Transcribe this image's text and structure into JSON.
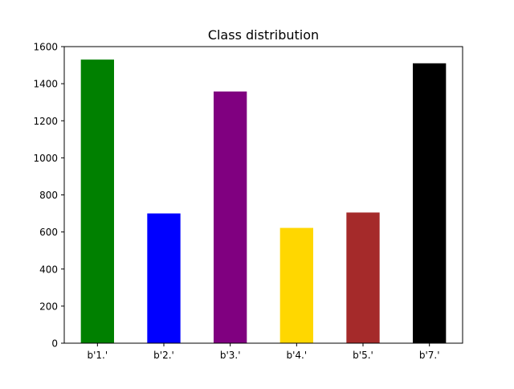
{
  "chart_data": {
    "type": "bar",
    "title": "Class distribution",
    "xlabel": "",
    "ylabel": "",
    "categories": [
      "b'1.'",
      "b'2.'",
      "b'3.'",
      "b'4.'",
      "b'5.'",
      "b'7.'"
    ],
    "values": [
      1530,
      700,
      1358,
      622,
      705,
      1510
    ],
    "colors": [
      "#008000",
      "#0000ff",
      "#800080",
      "#ffd700",
      "#a52a2a",
      "#000000"
    ],
    "ylim": [
      0,
      1600
    ],
    "yticks": [
      0,
      200,
      400,
      600,
      800,
      1000,
      1200,
      1400,
      1600
    ],
    "grid": false,
    "legend": "none"
  }
}
